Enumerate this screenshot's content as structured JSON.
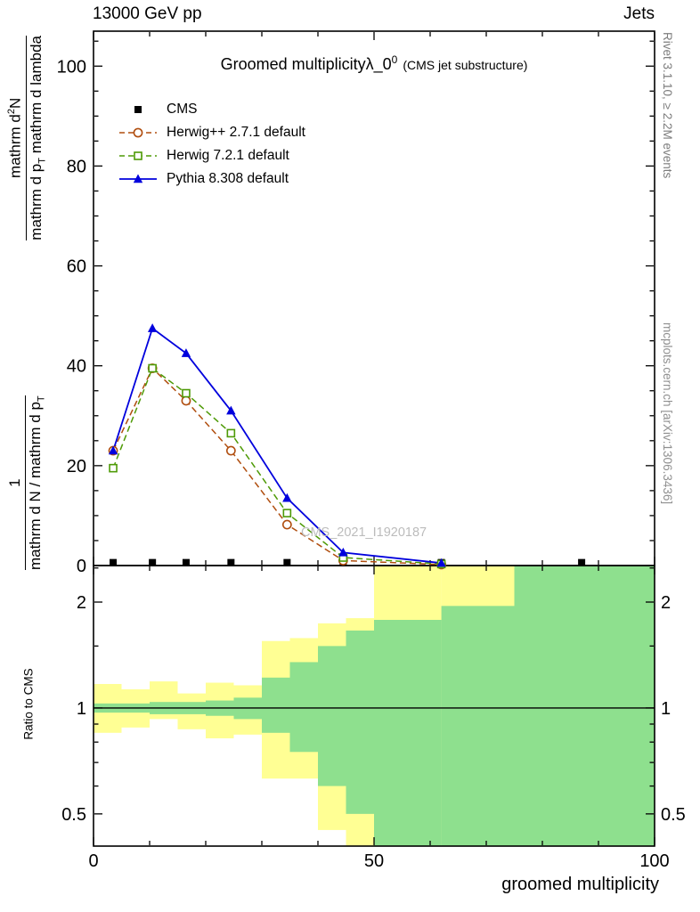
{
  "header": {
    "left": "13000 GeV pp",
    "right": "Jets"
  },
  "side_notes": {
    "top_right": "Rivet 3.1.10, ≥ 2.2M events",
    "bottom_right": "mcplots.cern.ch [arXiv:1306.3436]"
  },
  "watermark": "CMS_2021_I1920187",
  "title": {
    "main": "Groomed multiplicity",
    "lambda": "λ_0",
    "sup": "0",
    "paren": "(CMS jet substructure)"
  },
  "ylabel": {
    "frac1_num": "1",
    "frac1_den_a": "mathrm d N / mathrm d p",
    "frac1_den_sub": "T",
    "frac2_num_a": "mathrm d",
    "frac2_num_sup": "2",
    "frac2_num_b": "N",
    "frac2_den_a": "mathrm d p",
    "frac2_den_sub": "T",
    "frac2_den_b": " mathrm d lambda"
  },
  "ratio_ylabel": "Ratio to CMS",
  "xlabel": "groomed multiplicity",
  "legend": {
    "items": [
      {
        "label": "CMS",
        "series": 0
      },
      {
        "label": "Herwig++ 2.7.1 default",
        "series": 1
      },
      {
        "label": "Herwig 7.2.1 default",
        "series": 2
      },
      {
        "label": "Pythia 8.308 default",
        "series": 3
      }
    ]
  },
  "colors": {
    "band_yellow": "#ffff94",
    "band_green": "#8ee08e",
    "frame": "#000000",
    "cms": "#000000",
    "herwigpp": "#b04e0f",
    "herwig7": "#4e9a06",
    "pythia": "#0000dd",
    "watermark": "#bcbcbc",
    "side_note": "#7d7d7d"
  },
  "chart_data": [
    {
      "type": "line",
      "title": "Groomed multiplicity λ_0^0 (CMS jet substructure)",
      "xlabel": "groomed multiplicity",
      "ylabel": "1/(dN/dp_T) d^2N/(dp_T dlambda)",
      "xlim": [
        0,
        100
      ],
      "ylim": [
        0,
        107
      ],
      "xticks": [
        0,
        50,
        100
      ],
      "xminor_step": 10,
      "yticks": [
        0,
        20,
        40,
        60,
        80,
        100
      ],
      "yminor_step": 5,
      "legend_position": "top-left",
      "grid": false,
      "series": [
        {
          "name": "CMS",
          "color": "#000000",
          "line": "none",
          "marker": "filled-square",
          "x": [
            3.5,
            10.5,
            16.5,
            24.5,
            34.5,
            44.5,
            62,
            87
          ],
          "y": [
            0.6,
            0.6,
            0.6,
            0.6,
            0.6,
            0.6,
            0.6,
            0.6
          ]
        },
        {
          "name": "Herwig++ 2.7.1 default",
          "color": "#b04e0f",
          "line": "dashed",
          "marker": "open-circle",
          "x": [
            3.5,
            10.5,
            16.5,
            24.5,
            34.5,
            44.5,
            62
          ],
          "y": [
            23,
            39.5,
            33,
            23,
            8.2,
            1.0,
            0.2
          ]
        },
        {
          "name": "Herwig 7.2.1 default",
          "color": "#4e9a06",
          "line": "dashed",
          "marker": "open-square",
          "x": [
            3.5,
            10.5,
            16.5,
            24.5,
            34.5,
            44.5,
            62
          ],
          "y": [
            19.5,
            39.5,
            34.5,
            26.5,
            10.5,
            1.6,
            0.3
          ]
        },
        {
          "name": "Pythia 8.308 default",
          "color": "#0000dd",
          "line": "solid",
          "marker": "filled-triangle",
          "x": [
            3.5,
            10.5,
            16.5,
            24.5,
            34.5,
            44.5,
            62
          ],
          "y": [
            23,
            47.5,
            42.5,
            31,
            13.5,
            2.6,
            0.5
          ]
        }
      ]
    },
    {
      "type": "ratio-bands",
      "ylabel": "Ratio to CMS",
      "yscale": "log",
      "ylim": [
        0.405,
        2.54
      ],
      "yticks": [
        0.5,
        1,
        2
      ],
      "yminor": [
        0.6,
        0.7,
        0.8,
        0.9,
        1.5,
        2.5
      ],
      "reference_line": 1,
      "bands": [
        {
          "x0": 0,
          "x1": 5,
          "yellow": [
            0.85,
            1.17
          ],
          "green": [
            0.97,
            1.03
          ]
        },
        {
          "x0": 5,
          "x1": 10,
          "yellow": [
            0.88,
            1.13
          ],
          "green": [
            0.97,
            1.03
          ]
        },
        {
          "x0": 10,
          "x1": 15,
          "yellow": [
            0.93,
            1.19
          ],
          "green": [
            0.96,
            1.04
          ]
        },
        {
          "x0": 15,
          "x1": 20,
          "yellow": [
            0.87,
            1.1
          ],
          "green": [
            0.96,
            1.04
          ]
        },
        {
          "x0": 20,
          "x1": 25,
          "yellow": [
            0.82,
            1.18
          ],
          "green": [
            0.95,
            1.05
          ]
        },
        {
          "x0": 25,
          "x1": 30,
          "yellow": [
            0.84,
            1.16
          ],
          "green": [
            0.93,
            1.07
          ]
        },
        {
          "x0": 30,
          "x1": 35,
          "yellow": [
            0.63,
            1.55
          ],
          "green": [
            0.85,
            1.22
          ]
        },
        {
          "x0": 35,
          "x1": 40,
          "yellow": [
            0.63,
            1.58
          ],
          "green": [
            0.75,
            1.35
          ]
        },
        {
          "x0": 40,
          "x1": 45,
          "yellow": [
            0.45,
            1.74
          ],
          "green": [
            0.6,
            1.5
          ]
        },
        {
          "x0": 45,
          "x1": 50,
          "yellow": [
            0.38,
            1.8
          ],
          "green": [
            0.5,
            1.66
          ]
        },
        {
          "x0": 50,
          "x1": 62,
          "yellow": [
            0.405,
            2.54
          ],
          "green": [
            0.405,
            1.78
          ]
        },
        {
          "x0": 62,
          "x1": 75,
          "yellow": [
            0.405,
            2.54
          ],
          "green": [
            0.405,
            1.95
          ]
        },
        {
          "x0": 75,
          "x1": 100,
          "yellow": [
            0.405,
            2.54
          ],
          "green": [
            0.405,
            2.54
          ]
        }
      ]
    }
  ]
}
